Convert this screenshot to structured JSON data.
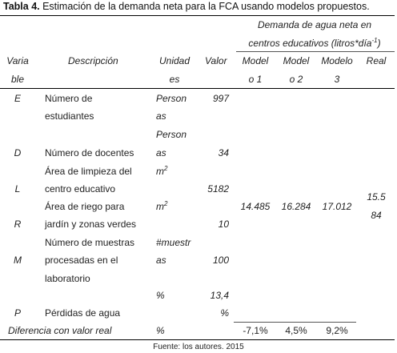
{
  "caption": {
    "label": "Tabla 4.",
    "text": " Estimación de la demanda neta para la FCA usando modelos propuestos."
  },
  "header": {
    "group_line1": "Demanda de agua neta en",
    "group_line2_pre": "centros educativos (litros*día",
    "group_sup": "-1",
    "group_line2_post": ")",
    "var_a": "Varia",
    "var_b": "ble",
    "description": "Descripción",
    "unit_a": "Unidad",
    "unit_b": "es",
    "value": "Valor",
    "m1_a": "Model",
    "m1_b": "o 1",
    "m2_a": "Model",
    "m2_b": "o 2",
    "m3_a": "Modelo",
    "m3_b": "3",
    "real": "Real"
  },
  "rows": {
    "E": {
      "var": "E",
      "desc1": "Número de",
      "desc2": "estudiantes",
      "unit1": "Person",
      "unit2": "as",
      "value": "997"
    },
    "D": {
      "var": "D",
      "desc": "Número de docentes",
      "unit1": "Person",
      "unit2": "as",
      "value": "34"
    },
    "L": {
      "var": "L",
      "desc1": "Área de limpieza del",
      "desc2": "centro educativo",
      "unit": "m",
      "unit_sup": "2",
      "value": "5182"
    },
    "R": {
      "var": "R",
      "desc1": "Área de riego para",
      "desc2": "jardín y zonas verdes",
      "unit": "m",
      "unit_sup": "2",
      "value": "10"
    },
    "M": {
      "var": "M",
      "desc1": "Número   de   muestras",
      "desc2": "procesadas      en      el",
      "desc3": "laboratorio",
      "unit1": "#muestr",
      "unit2": "as",
      "value": "100"
    },
    "P": {
      "var": "P",
      "desc": "Pérdidas de agua",
      "unit": "%",
      "value1": "13,4",
      "value2": "%"
    }
  },
  "results": {
    "m1": "14.485",
    "m2": "16.284",
    "m3": "17.012",
    "real_a": "15.5",
    "real_b": "84"
  },
  "diff": {
    "label": "Diferencia con valor real",
    "unit": "%",
    "m1": "-7,1%",
    "m2": "4,5%",
    "m3": "9,2%"
  },
  "source": "Fuente: los autores. 2015"
}
